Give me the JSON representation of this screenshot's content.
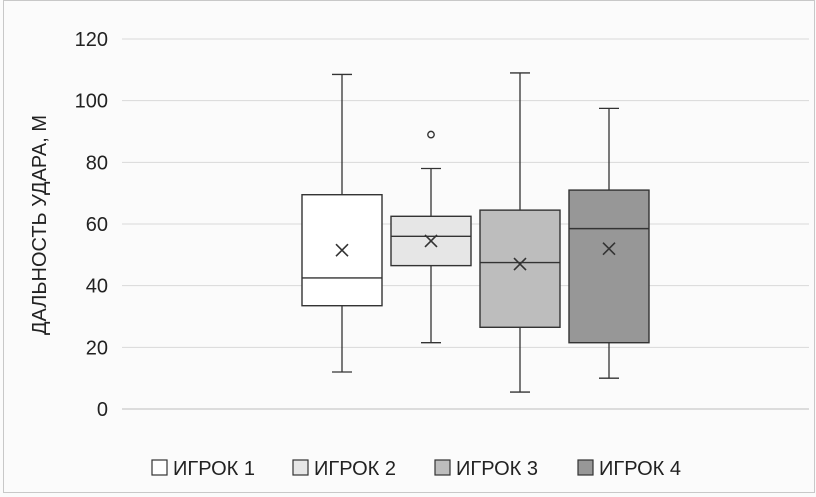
{
  "chart_data": {
    "type": "box",
    "title": "",
    "xlabel": "",
    "ylabel": "ДАЛЬНОСТЬ УДАРА, М",
    "ylim": [
      0,
      120
    ],
    "yticks": [
      0,
      20,
      40,
      60,
      80,
      100,
      120
    ],
    "grid": true,
    "legend_position": "bottom",
    "series": [
      {
        "name": "ИГРОК 1",
        "color": "#ffffff",
        "min": 12,
        "q1": 33.5,
        "median": 42.5,
        "q3": 69.5,
        "max": 108.5,
        "mean": 51.5,
        "outliers": []
      },
      {
        "name": "ИГРОК 2",
        "color": "#e6e6e6",
        "min": 21.5,
        "q1": 46.5,
        "median": 56,
        "q3": 62.5,
        "max": 78,
        "mean": 54.5,
        "outliers": [
          89
        ]
      },
      {
        "name": "ИГРОК 3",
        "color": "#bdbdbd",
        "min": 5.5,
        "q1": 26.5,
        "median": 47.5,
        "q3": 64.5,
        "max": 109,
        "mean": 47,
        "outliers": []
      },
      {
        "name": "ИГРОК 4",
        "color": "#979797",
        "min": 10,
        "q1": 21.5,
        "median": 58.5,
        "q3": 71,
        "max": 97.5,
        "mean": 52,
        "outliers": []
      }
    ]
  }
}
